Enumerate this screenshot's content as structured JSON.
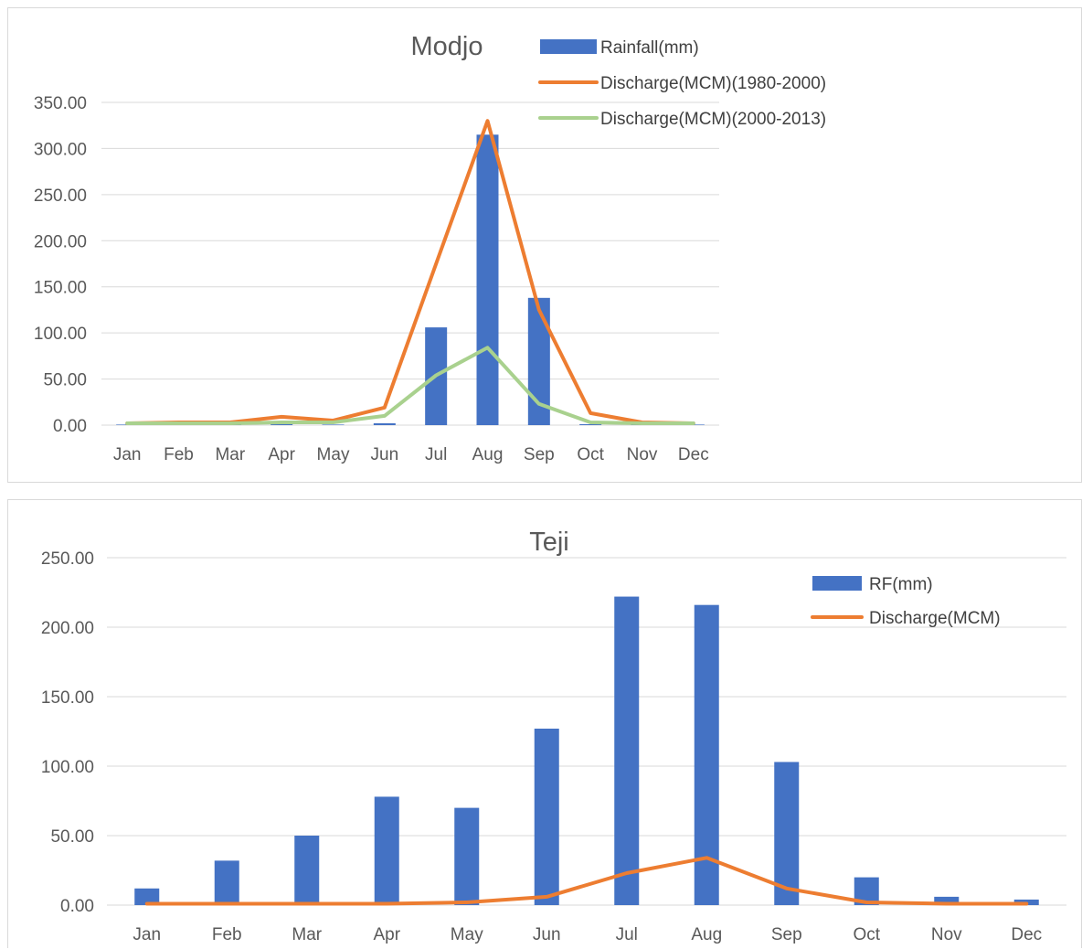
{
  "chart_data": [
    {
      "type": "bar",
      "title": "Modjo",
      "xlabel": "",
      "ylabel": "",
      "categories": [
        "Jan",
        "Feb",
        "Mar",
        "Apr",
        "May",
        "Jun",
        "Jul",
        "Aug",
        "Sep",
        "Oct",
        "Nov",
        "Dec"
      ],
      "y_ticks": [
        "0.00",
        "50.00",
        "100.00",
        "150.00",
        "200.00",
        "250.00",
        "300.00",
        "350.00"
      ],
      "ylim": [
        0,
        350
      ],
      "grid": true,
      "legend_position": "top-right",
      "series": [
        {
          "name": "Rainfall(mm)",
          "kind": "bar",
          "color": "#4472c4",
          "values": [
            0.5,
            1.5,
            0.8,
            1.0,
            0.5,
            2.0,
            106,
            315,
            138,
            1.0,
            0.3,
            0.2
          ]
        },
        {
          "name": "Discharge(MCM)(1980-2000)",
          "kind": "line",
          "color": "#ed7d31",
          "values": [
            2,
            3,
            3,
            9,
            5,
            19,
            175,
            330,
            125,
            13,
            3,
            2
          ]
        },
        {
          "name": "Discharge(MCM)(2000-2013)",
          "kind": "line",
          "color": "#a9d18e",
          "values": [
            2,
            2,
            2,
            3,
            3,
            10,
            54,
            84,
            23,
            3,
            2,
            2
          ]
        }
      ]
    },
    {
      "type": "bar",
      "title": "Teji",
      "xlabel": "",
      "ylabel": "",
      "categories": [
        "Jan",
        "Feb",
        "Mar",
        "Apr",
        "May",
        "Jun",
        "Jul",
        "Aug",
        "Sep",
        "Oct",
        "Nov",
        "Dec"
      ],
      "y_ticks": [
        "0.00",
        "50.00",
        "100.00",
        "150.00",
        "200.00",
        "250.00"
      ],
      "ylim": [
        0,
        250
      ],
      "grid": true,
      "legend_position": "top-right",
      "series": [
        {
          "name": "RF(mm)",
          "kind": "bar",
          "color": "#4472c4",
          "values": [
            12,
            32,
            50,
            78,
            70,
            127,
            222,
            216,
            103,
            20,
            6,
            4
          ]
        },
        {
          "name": "Discharge(MCM)",
          "kind": "line",
          "color": "#ed7d31",
          "values": [
            1,
            1,
            1,
            1,
            2,
            6,
            23,
            34,
            12,
            2,
            1,
            1
          ]
        }
      ]
    }
  ]
}
